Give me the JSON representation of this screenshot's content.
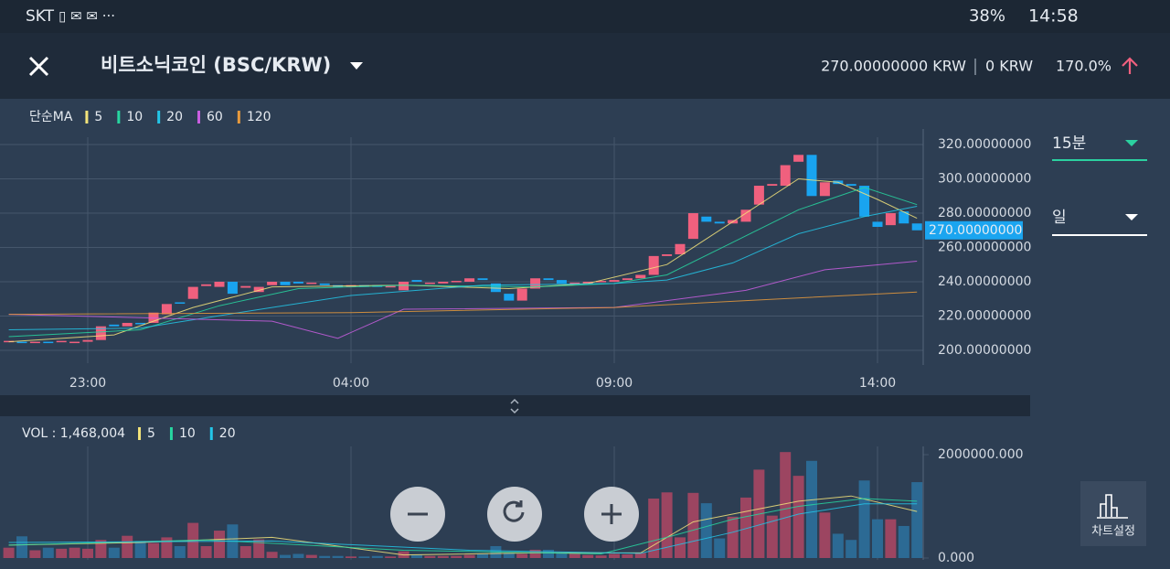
{
  "status_bar": {
    "carrier": "SKT",
    "battery": "38%",
    "time": "14:58"
  },
  "header": {
    "title": "비트소닉코인 (BSC/KRW)",
    "price": "270.00000000 KRW",
    "volume": "0 KRW",
    "change": "170.0%"
  },
  "side_panel": {
    "interval": "15분",
    "period": "일",
    "settings_button": "차트설정"
  },
  "chart_data": [
    {
      "type": "candlestick",
      "legend_title": "단순MA",
      "categories": [
        null,
        null,
        null,
        null,
        null,
        null,
        "23:00",
        null,
        null,
        null,
        null,
        null,
        null,
        null,
        null,
        null,
        null,
        null,
        null,
        null,
        null,
        null,
        null,
        null,
        null,
        null,
        "04:00",
        null,
        null,
        null,
        null,
        null,
        null,
        null,
        null,
        null,
        null,
        null,
        null,
        null,
        null,
        null,
        null,
        null,
        null,
        null,
        "09:00",
        null,
        null,
        null,
        null,
        null,
        null,
        null,
        null,
        null,
        null,
        null,
        null,
        null,
        null,
        null,
        null,
        null,
        null,
        null,
        "14:00",
        null,
        null,
        null
      ],
      "open": [
        205,
        205,
        204.5,
        205,
        205,
        204.5,
        205,
        206,
        215,
        214,
        216,
        216,
        221,
        228,
        230,
        237.5,
        237,
        240,
        236.5,
        234,
        238,
        240,
        240,
        239,
        239,
        238,
        237,
        238,
        238,
        237,
        235,
        241,
        239,
        239,
        240,
        240,
        242,
        239,
        233,
        229,
        236,
        242,
        241,
        239,
        239,
        240,
        240,
        241,
        242,
        244,
        255,
        256,
        265,
        278,
        275,
        274,
        275,
        285,
        296,
        296,
        310,
        314,
        290,
        299,
        297,
        296,
        275,
        273,
        281,
        274
      ],
      "close": [
        205.5,
        204.5,
        205,
        204.5,
        205.5,
        205,
        206,
        214,
        214,
        216,
        215.5,
        222,
        227,
        227.5,
        237,
        238.5,
        240,
        233,
        237.5,
        237,
        240,
        238,
        239,
        239.5,
        238,
        237,
        238,
        237,
        237,
        237.5,
        240,
        240,
        239.5,
        240,
        240.5,
        242,
        241,
        234,
        229,
        236,
        242,
        241,
        239,
        239.5,
        240,
        240.5,
        241,
        242,
        244,
        255,
        256,
        262,
        280,
        275,
        274,
        276,
        282,
        296,
        297,
        308,
        314,
        290,
        298,
        297,
        296,
        278,
        272,
        280,
        274,
        270
      ],
      "up_color": "#f0607e",
      "down_color": "#19a4f0",
      "series": [
        {
          "name": "5",
          "color": "#f3e37a",
          "x": [
            0,
            8,
            14,
            20,
            30,
            38,
            44,
            50,
            55,
            60,
            63,
            66,
            69
          ],
          "values": [
            205,
            209,
            225,
            237,
            238,
            236,
            239,
            250,
            275,
            300,
            298,
            288,
            277
          ]
        },
        {
          "name": "10",
          "color": "#27d6a0",
          "x": [
            0,
            10,
            16,
            22,
            30,
            40,
            46,
            50,
            55,
            60,
            65,
            69
          ],
          "values": [
            208,
            212,
            226,
            236,
            238,
            237,
            239,
            244,
            263,
            282,
            295,
            285
          ]
        },
        {
          "name": "20",
          "color": "#23c6e8",
          "x": [
            0,
            10,
            20,
            26,
            36,
            46,
            50,
            55,
            60,
            65,
            69
          ],
          "values": [
            212,
            213,
            225,
            232,
            238,
            239,
            241,
            251,
            268,
            278,
            284
          ]
        },
        {
          "name": "60",
          "color": "#c95ee0",
          "x": [
            0,
            20,
            25,
            30,
            46,
            56,
            62,
            69
          ],
          "values": [
            221,
            217,
            207,
            224,
            225,
            235,
            247,
            252
          ]
        },
        {
          "name": "120",
          "color": "#e89a3c",
          "x": [
            0,
            26,
            46,
            56,
            69
          ],
          "values": [
            221,
            222,
            225,
            229,
            234
          ]
        }
      ],
      "ylim": [
        192.5,
        324.3
      ],
      "yticks": [
        {
          "value": 320,
          "label": "320.00000000"
        },
        {
          "value": 300,
          "label": "300.00000000"
        },
        {
          "value": 280,
          "label": "280.00000000"
        },
        {
          "value": 260,
          "label": "260.00000000"
        },
        {
          "value": 240,
          "label": "240.00000000"
        },
        {
          "value": 220,
          "label": "220.00000000"
        },
        {
          "value": 200,
          "label": "200.00000000"
        }
      ],
      "price_tag": {
        "value": 270,
        "label": "270.00000000"
      },
      "grid": true
    },
    {
      "type": "bar",
      "title": "VOL : 1,468,004",
      "values": [
        200000,
        420000,
        150000,
        200000,
        180000,
        200000,
        180000,
        350000,
        200000,
        430000,
        330000,
        290000,
        400000,
        230000,
        680000,
        230000,
        530000,
        650000,
        230000,
        360000,
        120000,
        60000,
        80000,
        60000,
        40000,
        40000,
        30000,
        30000,
        40000,
        30000,
        130000,
        60000,
        40000,
        40000,
        40000,
        60000,
        80000,
        230000,
        100000,
        80000,
        160000,
        160000,
        100000,
        100000,
        60000,
        50000,
        80000,
        70000,
        100000,
        1150000,
        1270000,
        400000,
        1260000,
        1060000,
        380000,
        800000,
        1170000,
        1710000,
        820000,
        2050000,
        1590000,
        1880000,
        880000,
        470000,
        350000,
        1500000,
        750000,
        750000,
        620000,
        1468004
      ],
      "up_color": "#9c4561",
      "down_color": "#2c6a94",
      "series": [
        {
          "name": "5",
          "color": "#f3e37a",
          "x": [
            0,
            10,
            20,
            30,
            40,
            48,
            52,
            56,
            60,
            64,
            69
          ],
          "values": [
            250000,
            300000,
            400000,
            60000,
            100000,
            100000,
            700000,
            900000,
            1100000,
            1200000,
            900000
          ]
        },
        {
          "name": "10",
          "color": "#27d6a0",
          "x": [
            0,
            15,
            30,
            45,
            50,
            55,
            60,
            65,
            69
          ],
          "values": [
            250000,
            350000,
            150000,
            80000,
            400000,
            750000,
            1000000,
            1150000,
            1100000
          ]
        },
        {
          "name": "20",
          "color": "#23c6e8",
          "x": [
            0,
            20,
            35,
            48,
            55,
            60,
            65,
            69
          ],
          "values": [
            300000,
            330000,
            150000,
            90000,
            500000,
            850000,
            1050000,
            1050000
          ]
        }
      ],
      "ylim": [
        0,
        2000000
      ],
      "yticks": [
        {
          "value": 2000000,
          "label": "2000000.000"
        },
        {
          "value": 0,
          "label": "0.000"
        }
      ]
    }
  ]
}
